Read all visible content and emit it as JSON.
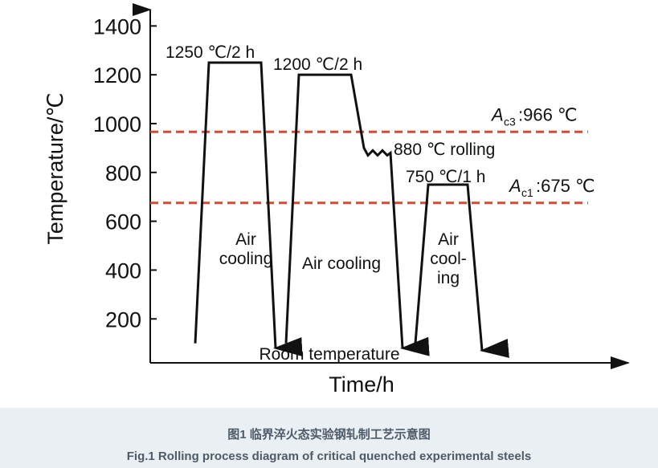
{
  "chart_data": {
    "type": "process",
    "ylabel": "Temperature/℃",
    "xlabel": "Time/h",
    "ylim": [
      20,
      1480
    ],
    "yticks": [
      200,
      400,
      600,
      800,
      1000,
      1200,
      1400
    ],
    "series": [
      {
        "color": "#111111",
        "values": [
          100,
          1250,
          1250,
          80
        ]
      },
      {
        "color": "#111111",
        "values": [
          100,
          1200,
          1200,
          900,
          870,
          890,
          870,
          890,
          870,
          880,
          80
        ]
      },
      {
        "color": "#111111",
        "values": [
          100,
          750,
          750,
          70
        ]
      }
    ],
    "reference_lines": [
      {
        "symbol": "A",
        "sub": "c3",
        "label": ":966 ℃",
        "value": 966,
        "color": "#d94a36"
      },
      {
        "symbol": "A",
        "sub": "c1",
        "label": ":675 ℃",
        "value": 675,
        "color": "#d94a36"
      }
    ],
    "annotations": [
      [
        "1250 ℃/2 h"
      ],
      [
        "1200 ℃/2 h"
      ],
      [
        "880 ℃ rolling"
      ],
      [
        "750 ℃/1 h"
      ],
      [
        "Air",
        "cooling"
      ],
      [
        "Air cooling"
      ],
      [
        "Air",
        "cool-",
        "ing"
      ],
      [
        "Room temperature"
      ]
    ]
  },
  "caption": {
    "zh": "图1 临界淬火态实验钢轧制工艺示意图",
    "en": "Fig.1 Rolling process diagram of critical quenched experimental steels"
  }
}
